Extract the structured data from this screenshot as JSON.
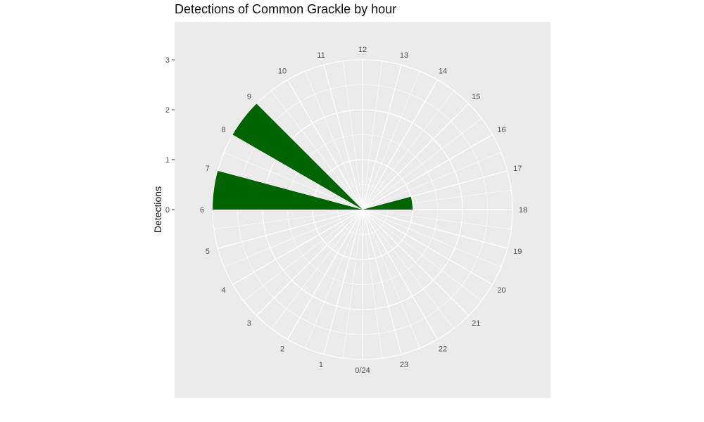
{
  "chart_data": {
    "type": "bar",
    "coord": "polar",
    "title": "Detections of Common Grackle by hour",
    "ylabel": "Detections",
    "xlabel": "",
    "x_tick_labels": [
      "0/24",
      "1",
      "2",
      "3",
      "4",
      "5",
      "6",
      "7",
      "8",
      "9",
      "10",
      "11",
      "12",
      "13",
      "14",
      "15",
      "16",
      "17",
      "18",
      "19",
      "20",
      "21",
      "22",
      "23"
    ],
    "y_ticks": [
      0,
      1,
      2,
      3
    ],
    "ylim": [
      0,
      3
    ],
    "bar_color": "#006400",
    "panel_color": "#EBEBEB",
    "grid_color": "#FFFFFF",
    "series": [
      {
        "hours": [
          6,
          8,
          17
        ],
        "values": [
          3.0,
          3.0,
          1.0
        ]
      }
    ]
  }
}
